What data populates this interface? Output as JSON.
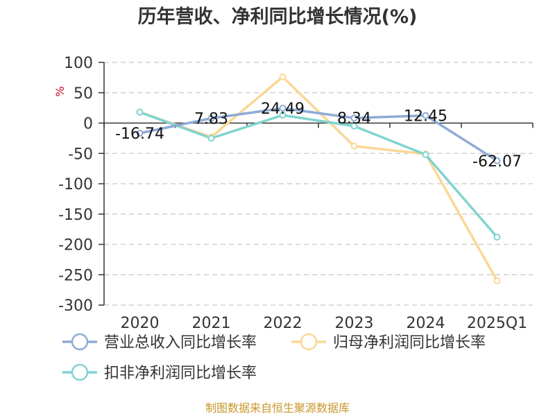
{
  "chart_data": {
    "type": "line",
    "title": "历年营收、净利同比增长情况(%)",
    "ylabel": "%",
    "xlabel": "",
    "categories": [
      "2020",
      "2021",
      "2022",
      "2023",
      "2024",
      "2025Q1"
    ],
    "ylim": [
      -300,
      100
    ],
    "yticks": [
      100,
      50,
      0,
      -50,
      -100,
      -150,
      -200,
      -250,
      -300
    ],
    "grid": true,
    "legend_position": "bottom",
    "series": [
      {
        "name": "营业总收入同比增长率",
        "color": "#8eaad6",
        "values": [
          -16.74,
          7.83,
          24.49,
          8.34,
          12.45,
          -62.07
        ],
        "labels": [
          "-16.74",
          "7.83",
          "24.49",
          "8.34",
          "12.45",
          "-62.07"
        ]
      },
      {
        "name": "归母净利润同比增长率",
        "color": "#fad796",
        "values": [
          18,
          -23,
          76,
          -38,
          -51,
          -260
        ]
      },
      {
        "name": "扣非净利润同比增长率",
        "color": "#80d4cf",
        "values": [
          18,
          -25,
          13,
          -5,
          -52,
          -188
        ]
      }
    ]
  },
  "source": "制图数据来自恒生聚源数据库"
}
